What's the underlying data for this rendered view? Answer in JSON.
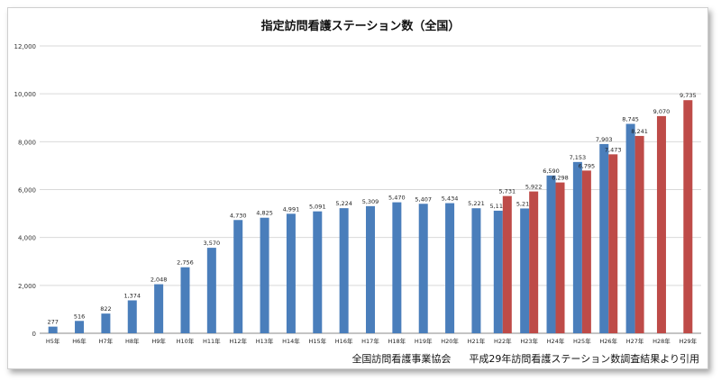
{
  "chart_data": {
    "type": "bar",
    "title": "指定訪問看護ステーション数（全国）",
    "categories": [
      "H5年",
      "H6年",
      "H7年",
      "H8年",
      "H9年",
      "H10年",
      "H11年",
      "H12年",
      "H13年",
      "H14年",
      "H15年",
      "H16年",
      "H17年",
      "H18年",
      "H19年",
      "H20年",
      "H21年",
      "H22年",
      "H23年",
      "H24年",
      "H25年",
      "H26年",
      "H27年",
      "H28年",
      "H29年"
    ],
    "series": [
      {
        "values": [
          277,
          516,
          822,
          1374,
          2048,
          2756,
          3570,
          4730,
          4825,
          4991,
          5091,
          5224,
          5309,
          5470,
          5407,
          5434,
          5221,
          5119,
          5212,
          6590,
          7153,
          7903,
          8745,
          null,
          null
        ],
        "color": "#4a7ebb"
      },
      {
        "values": [
          null,
          null,
          null,
          null,
          null,
          null,
          null,
          null,
          null,
          null,
          null,
          null,
          null,
          null,
          null,
          null,
          null,
          5731,
          5922,
          6298,
          6795,
          7473,
          8241,
          9070,
          9735
        ],
        "color": "#be4b48"
      }
    ],
    "ylim": [
      0,
      12000
    ],
    "yticks": [
      "0",
      "2,000",
      "4,000",
      "6,000",
      "8,000",
      "10,000",
      "12,000"
    ],
    "grid": true,
    "legend": "none"
  },
  "footer": {
    "source_org": "全国訪問看護事業協会",
    "source_note": "平成29年訪問看護ステーション数調査結果より引用"
  }
}
